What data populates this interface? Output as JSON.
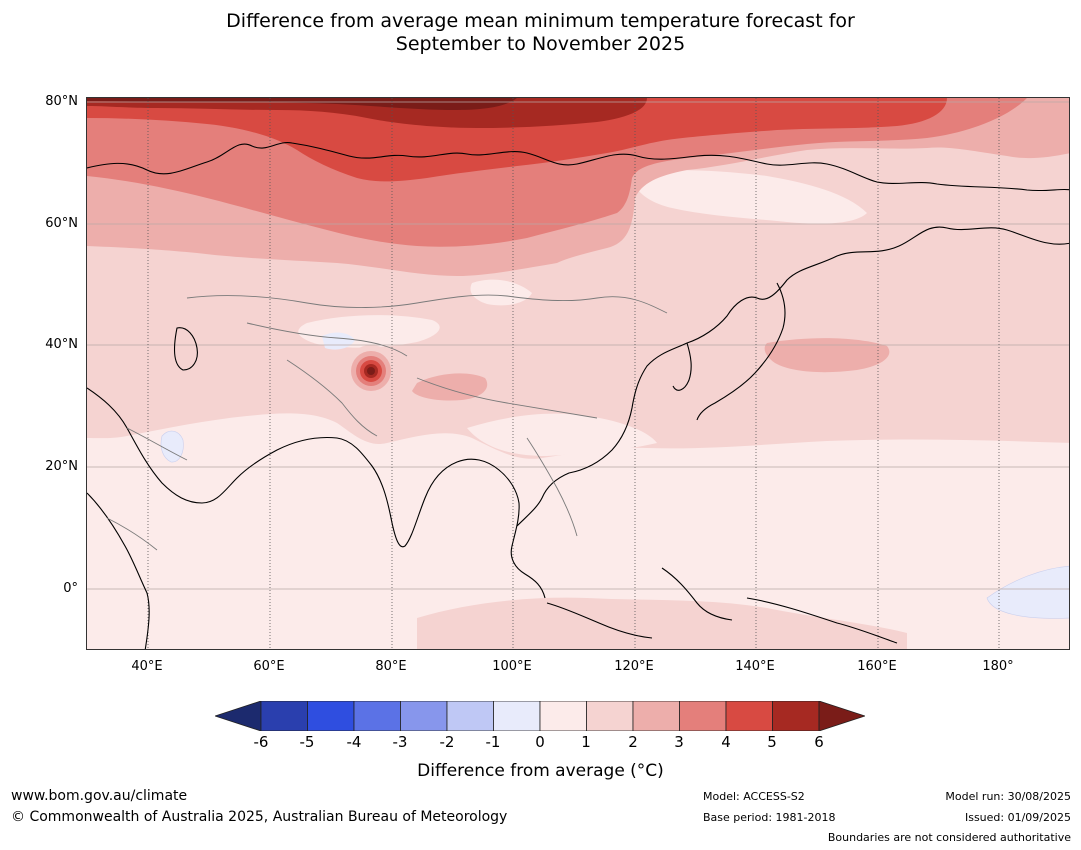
{
  "title": {
    "line1": "Difference from average mean minimum temperature forecast for",
    "line2": "September to November 2025"
  },
  "map": {
    "lat_labels": [
      "80°N",
      "60°N",
      "40°N",
      "20°N",
      "0°"
    ],
    "lon_labels": [
      "40°E",
      "60°E",
      "80°E",
      "100°E",
      "120°E",
      "140°E",
      "160°E",
      "180°"
    ],
    "lon_range": [
      30,
      190
    ],
    "lat_range": [
      -10,
      80
    ]
  },
  "colorbar": {
    "ticks": [
      "-6",
      "-5",
      "-4",
      "-3",
      "-2",
      "-1",
      "0",
      "1",
      "2",
      "3",
      "4",
      "5",
      "6"
    ],
    "colors": {
      "below_min": "#1c2a6e",
      "bins": [
        "#2a3fae",
        "#2f4ee0",
        "#5b72e6",
        "#8796ec",
        "#bfc8f5",
        "#e8ebfb",
        "#fcebea",
        "#f5d3d1",
        "#edaeab",
        "#e47f7b",
        "#d84a42",
        "#a62922"
      ],
      "above_max": "#7a1c18"
    },
    "label": "Difference from average (°C)"
  },
  "footer": {
    "website": "www.bom.gov.au/climate",
    "copyright": "© Commonwealth of Australia 2025, Australian Bureau of Meteorology",
    "model": "Model: ACCESS-S2",
    "base_period": "Base period: 1981-2018",
    "model_run": "Model run: 30/08/2025",
    "issued": "Issued: 01/09/2025",
    "disclaimer": "Boundaries are not considered authoritative"
  }
}
